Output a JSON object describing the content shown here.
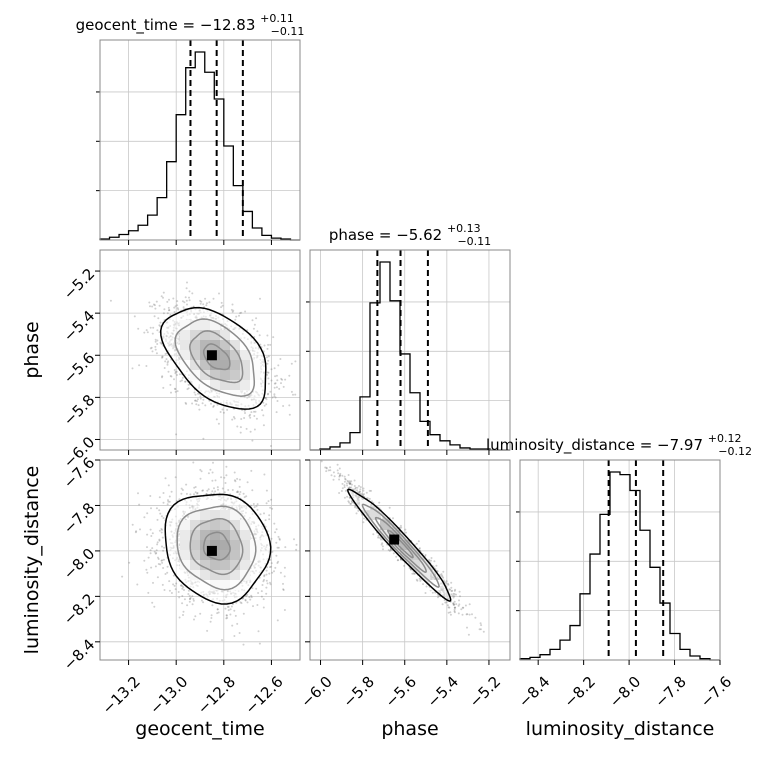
{
  "chart_data": {
    "type": "corner",
    "parameters": [
      {
        "name": "geocent_time",
        "axis_label": "geocent_time",
        "title": {
          "main": "geocent_time = −12.83",
          "upper": "+0.11",
          "lower": "−0.11"
        },
        "median": -12.83,
        "q16": -12.94,
        "q84": -12.72,
        "range": [
          -13.32,
          -12.48
        ],
        "ticks": [
          -13.2,
          -13.0,
          -12.8,
          -12.6
        ],
        "tick_labels": [
          "−13.2",
          "−13.0",
          "−12.8",
          "−12.6"
        ],
        "histogram": {
          "x0": -13.32,
          "bin_width": 0.04,
          "values": [
            1,
            3,
            6,
            10,
            16,
            27,
            46,
            85,
            136,
            187,
            204,
            182,
            153,
            102,
            59,
            31,
            13,
            5,
            2,
            1,
            0
          ]
        }
      },
      {
        "name": "phase",
        "axis_label": "phase",
        "title": {
          "main": "phase = −5.62",
          "upper": "+0.13",
          "lower": "−0.11"
        },
        "median": -5.62,
        "q16": -5.73,
        "q84": -5.49,
        "range": [
          -6.05,
          -5.1
        ],
        "ticks": [
          -6.0,
          -5.8,
          -5.6,
          -5.4,
          -5.2
        ],
        "tick_labels": [
          "−6.0",
          "−5.8",
          "−5.6",
          "−5.4",
          "−5.2"
        ],
        "histogram": {
          "x0": -6.05,
          "bin_width": 0.0475,
          "values": [
            0,
            1,
            3,
            7,
            17,
            52,
            144,
            184,
            146,
            94,
            56,
            28,
            15,
            9,
            5,
            2,
            1,
            1,
            0,
            0
          ]
        }
      },
      {
        "name": "luminosity_distance",
        "axis_label": "luminosity_distance",
        "title": {
          "main": "luminosity_distance = −7.97",
          "upper": "+0.12",
          "lower": "−0.12"
        },
        "median": -7.97,
        "q16": -8.09,
        "q84": -7.85,
        "range": [
          -8.48,
          -7.6
        ],
        "ticks": [
          -8.4,
          -8.2,
          -8.0,
          -7.8,
          -7.6
        ],
        "tick_labels": [
          "−8.4",
          "−8.2",
          "−8.0",
          "−7.8",
          "−7.6"
        ],
        "histogram": {
          "x0": -8.48,
          "bin_width": 0.044,
          "values": [
            1,
            2,
            4,
            8,
            15,
            26,
            50,
            80,
            110,
            142,
            140,
            128,
            98,
            70,
            43,
            20,
            8,
            3,
            1,
            0
          ]
        }
      }
    ],
    "pairs": [
      {
        "x": "geocent_time",
        "y": "phase",
        "mean": [
          -12.83,
          -5.61
        ],
        "sd": [
          0.11,
          0.12
        ],
        "corr": -0.45,
        "best": [
          -12.85,
          -5.6
        ]
      },
      {
        "x": "geocent_time",
        "y": "luminosity_distance",
        "mean": [
          -12.83,
          -7.98
        ],
        "sd": [
          0.11,
          0.12
        ],
        "corr": -0.1,
        "best": [
          -12.85,
          -8.0
        ]
      },
      {
        "x": "phase",
        "y": "luminosity_distance",
        "mean": [
          -5.62,
          -7.97
        ],
        "sd": [
          0.12,
          0.12
        ],
        "corr": -0.97,
        "best": [
          -5.65,
          -7.95
        ]
      }
    ],
    "grid": true,
    "quantile_lines": "dashed"
  }
}
